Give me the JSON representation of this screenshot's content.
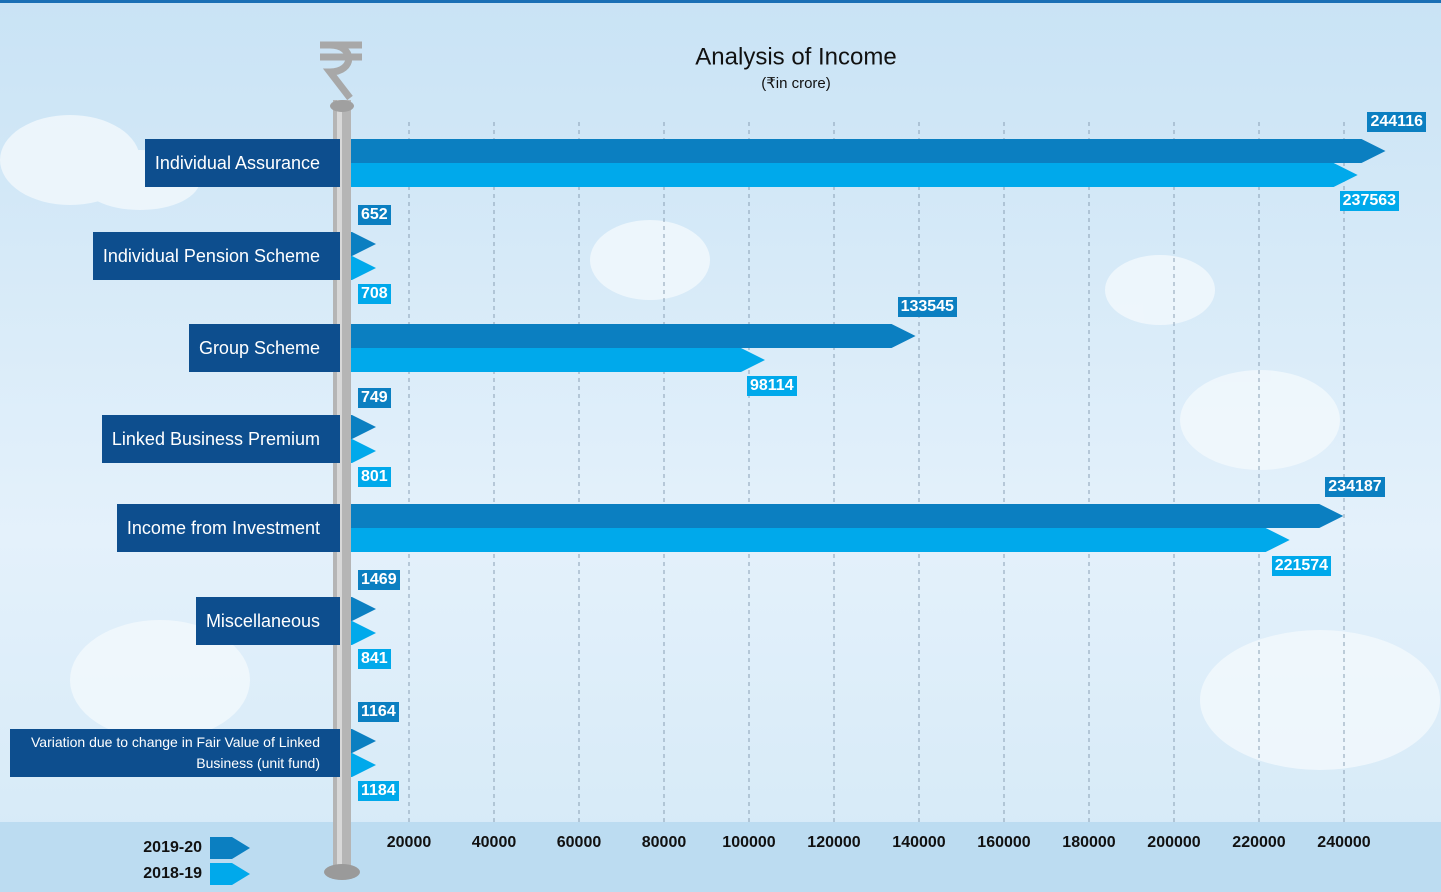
{
  "chart_data": {
    "type": "bar",
    "orientation": "horizontal",
    "title": "Analysis of Income",
    "subtitle": "(₹in crore)",
    "categories": [
      "Individual Assurance",
      "Individual Pension Scheme",
      "Group Scheme",
      "Linked Business Premium",
      "Income from Investment",
      "Miscellaneous",
      "Variation due to change in Fair Value of Linked Business (unit fund)"
    ],
    "series": [
      {
        "name": "2019-20",
        "color": "#0b7fc1",
        "values": [
          244116,
          652,
          133545,
          749,
          234187,
          1469,
          1164
        ]
      },
      {
        "name": "2018-19",
        "color": "#00a9eb",
        "values": [
          237563,
          708,
          98114,
          801,
          221574,
          841,
          1184
        ]
      }
    ],
    "xlim": [
      0,
      250000
    ],
    "xticks": [
      20000,
      40000,
      60000,
      80000,
      100000,
      120000,
      140000,
      160000,
      180000,
      200000,
      220000,
      240000
    ],
    "grid": true,
    "legend": "bottom-left"
  }
}
